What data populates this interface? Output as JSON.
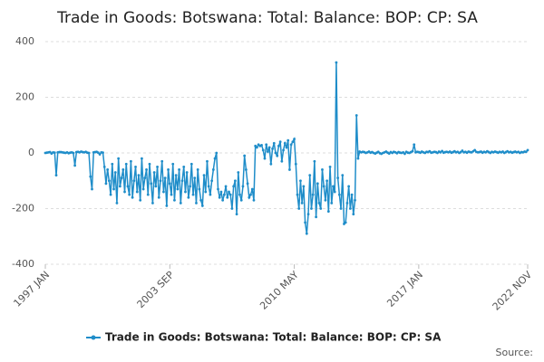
{
  "chart_data": {
    "type": "line",
    "title": "Trade in Goods: Botswana: Total: Balance: BOP: CP: SA",
    "source": "Source:",
    "categories": [
      "1997 JAN",
      null,
      null,
      null,
      null,
      null,
      null,
      null,
      null,
      null,
      null,
      null,
      null,
      null,
      null,
      null,
      null,
      null,
      null,
      null,
      null,
      null,
      null,
      null,
      null,
      null,
      null,
      null,
      null,
      null,
      null,
      null,
      null,
      null,
      null,
      null,
      null,
      null,
      null,
      null,
      null,
      null,
      null,
      null,
      null,
      null,
      null,
      null,
      null,
      null,
      null,
      null,
      null,
      null,
      null,
      null,
      null,
      null,
      null,
      null,
      null,
      null,
      null,
      null,
      null,
      null,
      null,
      null,
      null,
      null,
      null,
      null,
      null,
      null,
      null,
      null,
      null,
      null,
      null,
      null,
      "2003 SEP",
      null,
      null,
      null,
      null,
      null,
      null,
      null,
      null,
      null,
      null,
      null,
      null,
      null,
      null,
      null,
      null,
      null,
      null,
      null,
      null,
      null,
      null,
      null,
      null,
      null,
      null,
      null,
      null,
      null,
      null,
      null,
      null,
      null,
      null,
      null,
      null,
      null,
      null,
      null,
      null,
      null,
      null,
      null,
      null,
      null,
      null,
      null,
      null,
      null,
      null,
      null,
      null,
      null,
      null,
      null,
      null,
      null,
      null,
      null,
      null,
      null,
      null,
      null,
      null,
      null,
      null,
      null,
      null,
      null,
      null,
      null,
      null,
      null,
      null,
      null,
      null,
      null,
      null,
      null,
      "2010 MAY",
      null,
      null,
      null,
      null,
      null,
      null,
      null,
      null,
      null,
      null,
      null,
      null,
      null,
      null,
      null,
      null,
      null,
      null,
      null,
      null,
      null,
      null,
      null,
      null,
      null,
      null,
      null,
      null,
      null,
      null,
      null,
      null,
      null,
      null,
      null,
      null,
      null,
      null,
      null,
      null,
      null,
      null,
      null,
      null,
      null,
      null,
      null,
      null,
      null,
      null,
      null,
      null,
      null,
      null,
      null,
      null,
      null,
      null,
      null,
      null,
      null,
      null,
      null,
      null,
      null,
      null,
      null,
      null,
      null,
      null,
      null,
      null,
      null,
      null,
      null,
      null,
      null,
      null,
      null,
      "2017 JAN",
      null,
      null,
      null,
      null,
      null,
      null,
      null,
      null,
      null,
      null,
      null,
      null,
      null,
      null,
      null,
      null,
      null,
      null,
      null,
      null,
      null,
      null,
      null,
      null,
      null,
      null,
      null,
      null,
      null,
      null,
      null,
      null,
      null,
      null,
      null,
      null,
      null,
      null,
      null,
      null,
      null,
      null,
      null,
      null,
      null,
      null,
      null,
      null,
      null,
      null,
      null,
      null,
      null,
      null,
      null,
      null,
      null,
      null,
      null,
      null,
      null,
      null,
      null,
      null,
      null,
      null,
      null,
      null,
      null,
      "2022 NOV"
    ],
    "series": [
      {
        "name": "Trade in Goods: Botswana: Total: Balance: BOP: CP: SA",
        "color": "#1f8dc9",
        "values": [
          0,
          1,
          2,
          3,
          -2,
          2,
          1,
          -80,
          2,
          3,
          3,
          2,
          1,
          0,
          2,
          -1,
          1,
          2,
          0,
          -45,
          3,
          4,
          2,
          5,
          3,
          2,
          4,
          1,
          0,
          -85,
          -130,
          2,
          3,
          4,
          1,
          -5,
          2,
          1,
          -50,
          -110,
          -60,
          -100,
          -150,
          -40,
          -130,
          -70,
          -180,
          -20,
          -120,
          -90,
          -60,
          -140,
          -40,
          -120,
          -150,
          -30,
          -160,
          -100,
          -50,
          -140,
          -80,
          -170,
          -20,
          -130,
          -90,
          -60,
          -150,
          -40,
          -110,
          -180,
          -70,
          -120,
          -50,
          -160,
          -100,
          -30,
          -140,
          -90,
          -190,
          -60,
          -110,
          -150,
          -40,
          -170,
          -80,
          -130,
          -60,
          -180,
          -100,
          -50,
          -140,
          -70,
          -160,
          -120,
          -40,
          -150,
          -90,
          -180,
          -60,
          -130,
          -170,
          -190,
          -80,
          -140,
          -30,
          -120,
          -150,
          -100,
          -60,
          -20,
          0,
          -130,
          -160,
          -140,
          -170,
          -150,
          -120,
          -160,
          -140,
          -150,
          -200,
          -120,
          -100,
          -220,
          -70,
          -150,
          -170,
          -120,
          -10,
          -60,
          -110,
          -160,
          -150,
          -130,
          -170,
          25,
          20,
          30,
          25,
          28,
          10,
          -20,
          30,
          5,
          20,
          -40,
          15,
          35,
          0,
          -10,
          25,
          40,
          -30,
          10,
          35,
          20,
          45,
          -60,
          30,
          40,
          50,
          -40,
          -150,
          -200,
          -100,
          -180,
          -120,
          -250,
          -290,
          -220,
          -80,
          -200,
          -150,
          -30,
          -230,
          -110,
          -180,
          -200,
          -60,
          -120,
          -170,
          -100,
          -210,
          -50,
          -180,
          -120,
          -140,
          325,
          -90,
          -150,
          -200,
          -80,
          -255,
          -250,
          -180,
          -120,
          -200,
          -150,
          -220,
          -170,
          135,
          -20,
          5,
          2,
          4,
          3,
          0,
          2,
          5,
          1,
          3,
          0,
          -2,
          1,
          4,
          -1,
          -3,
          0,
          2,
          5,
          1,
          -2,
          3,
          0,
          4,
          2,
          -1,
          3,
          1,
          0,
          2,
          -3,
          4,
          1,
          0,
          3,
          6,
          30,
          2,
          4,
          3,
          1,
          5,
          2,
          0,
          4,
          3,
          6,
          1,
          2,
          4,
          3,
          0,
          5,
          2,
          7,
          1,
          3,
          4,
          2,
          5,
          1,
          3,
          6,
          2,
          4,
          0,
          3,
          8,
          2,
          4,
          1,
          5,
          3,
          2,
          6,
          10,
          4,
          2,
          3,
          5,
          1,
          4,
          2,
          6,
          3,
          0,
          4,
          2,
          5,
          3,
          1,
          4,
          2,
          5,
          0,
          3,
          6,
          2,
          4,
          1,
          3,
          5,
          2,
          4,
          0,
          3,
          2,
          5,
          4,
          10
        ]
      }
    ],
    "ylim": [
      -400,
      400
    ],
    "yticks": [
      -400,
      -200,
      0,
      200,
      400
    ],
    "grid": true
  }
}
